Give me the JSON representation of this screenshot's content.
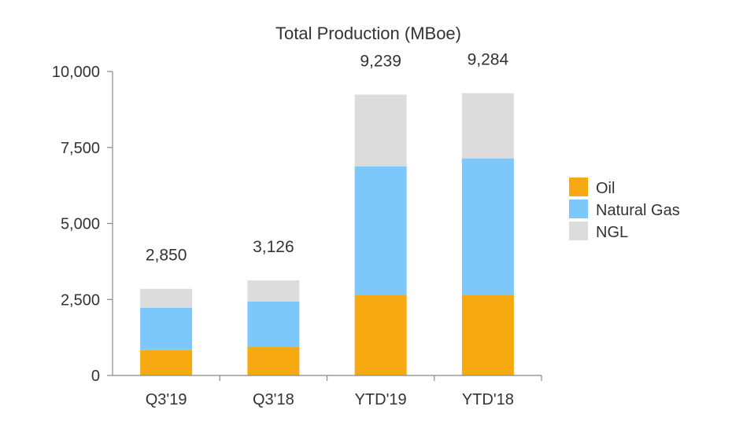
{
  "chart_data": {
    "type": "bar",
    "stacked": true,
    "title": "Total Production (MBoe)",
    "xlabel": "",
    "ylabel": "",
    "categories": [
      "Q3'19",
      "Q3'18",
      "YTD'19",
      "YTD'18"
    ],
    "series": [
      {
        "name": "Oil",
        "color": "#F7A912",
        "values": [
          830,
          930,
          2650,
          2650
        ]
      },
      {
        "name": "Natural Gas",
        "color": "#7DC8FB",
        "values": [
          1400,
          1500,
          4230,
          4490
        ]
      },
      {
        "name": "NGL",
        "color": "#DCDCDC",
        "values": [
          620,
          696,
          2359,
          2144
        ]
      }
    ],
    "totals": [
      "2,850",
      "3,126",
      "9,239",
      "9,284"
    ],
    "yticks": [
      0,
      2500,
      5000,
      7500,
      10000
    ],
    "ytick_labels": [
      "0",
      "2,500",
      "5,000",
      "7,500",
      "10,000"
    ],
    "ylim": [
      0,
      10000
    ],
    "legend_position": "right",
    "grid": false
  }
}
